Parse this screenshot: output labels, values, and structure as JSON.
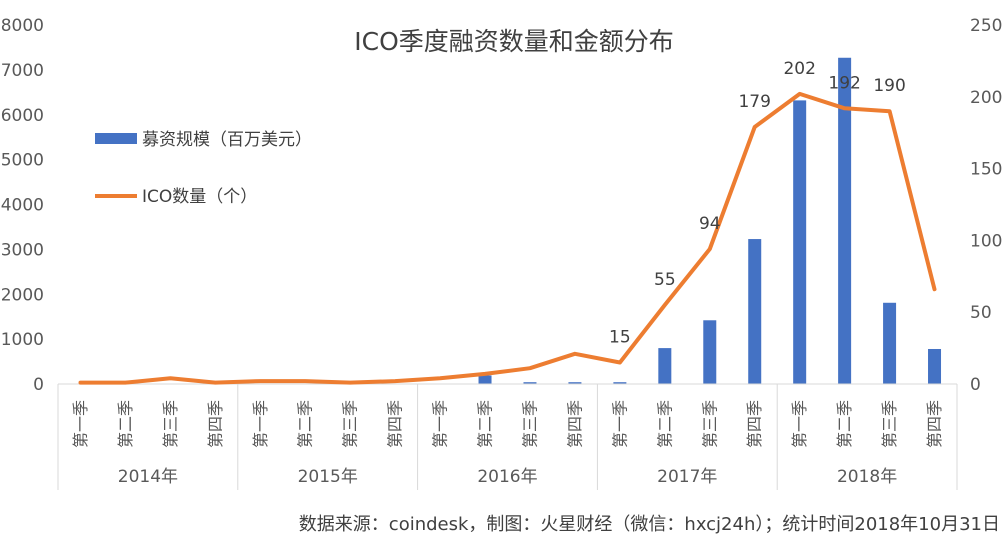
{
  "chart_data": {
    "type": "bar+line",
    "title": "ICO季度融资数量和金额分布",
    "categories": [
      "第一季",
      "第二季",
      "第三季",
      "第四季",
      "第一季",
      "第二季",
      "第三季",
      "第四季",
      "第一季",
      "第二季",
      "第三季",
      "第四季",
      "第一季",
      "第二季",
      "第三季",
      "第四季",
      "第一季",
      "第二季",
      "第三季",
      "第四季"
    ],
    "groups": [
      {
        "label": "2014年",
        "count": 4
      },
      {
        "label": "2015年",
        "count": 4
      },
      {
        "label": "2016年",
        "count": 4
      },
      {
        "label": "2017年",
        "count": 4
      },
      {
        "label": "2018年",
        "count": 4
      }
    ],
    "series": [
      {
        "name": "募资规模（百万美元）",
        "type": "bar",
        "axis": "left",
        "color": "#4472C4",
        "values": [
          5,
          5,
          10,
          5,
          5,
          5,
          5,
          5,
          10,
          190,
          40,
          40,
          40,
          800,
          1420,
          3230,
          6320,
          7270,
          1810,
          780
        ]
      },
      {
        "name": "ICO数量（个）",
        "type": "line",
        "axis": "right",
        "color": "#ED7D31",
        "values": [
          1,
          1,
          4,
          1,
          2,
          2,
          1,
          2,
          4,
          7,
          11,
          21,
          15,
          55,
          94,
          179,
          202,
          192,
          190,
          66
        ]
      }
    ],
    "line_labels": [
      {
        "index": 12,
        "text": "15"
      },
      {
        "index": 13,
        "text": "55"
      },
      {
        "index": 14,
        "text": "94"
      },
      {
        "index": 15,
        "text": "179"
      },
      {
        "index": 16,
        "text": "202"
      },
      {
        "index": 17,
        "text": "192"
      },
      {
        "index": 18,
        "text": "190"
      }
    ],
    "y_left": {
      "min": 0,
      "max": 8000,
      "ticks": [
        "0",
        "1000",
        "2000",
        "3000",
        "4000",
        "5000",
        "6000",
        "7000",
        "8000"
      ]
    },
    "y_right": {
      "min": 0,
      "max": 250,
      "ticks": [
        "0",
        "50",
        "100",
        "150",
        "200",
        "250"
      ]
    },
    "legend_position": "upper-left",
    "grid": false
  },
  "source_note": "数据来源：coindesk，制图：火星财经（微信：hxcj24h）；统计时间2018年10月31日"
}
